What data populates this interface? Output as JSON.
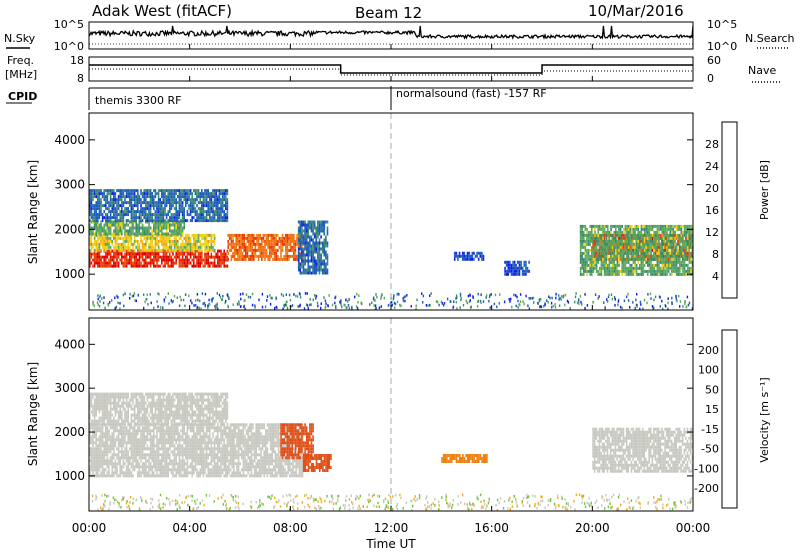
{
  "header": {
    "radar": "Adak West (fitACF)",
    "beam": "Beam 12",
    "date": "10/Mar/2016"
  },
  "strips": {
    "noise_left_label": "N.Sky",
    "noise_right_label": "N.Search",
    "noise_ticks_left": [
      "10^5",
      "10^0"
    ],
    "noise_ticks_right": [
      "10^5",
      "10^0"
    ],
    "freq_label_line1": "Freq.",
    "freq_label_line2": "[MHz]",
    "freq_ticks": [
      "18",
      "8"
    ],
    "nave_label": "Nave",
    "nave_ticks": [
      "60",
      "0"
    ],
    "cpid_label": "CPID",
    "cpid_segments": [
      {
        "text": "themis 3300 RF",
        "start_hour": 0,
        "end_hour": 12
      },
      {
        "text": "normalsound (fast) -157 RF",
        "start_hour": 12,
        "end_hour": 24
      }
    ]
  },
  "axes": {
    "xlabel": "Time UT",
    "ylabel": "Slant Range [km]",
    "x_ticks": [
      "00:00",
      "04:00",
      "08:00",
      "12:00",
      "16:00",
      "20:00",
      "00:00"
    ],
    "y_ticks": [
      "1000",
      "2000",
      "3000",
      "4000"
    ]
  },
  "power_scale": {
    "title": "Power [dB]",
    "ticks": [
      "4",
      "8",
      "12",
      "16",
      "20",
      "24",
      "28"
    ],
    "colors": [
      "#1020e8",
      "#1d5fb6",
      "#3d8a6e",
      "#5aa85a",
      "#f0d010",
      "#f0a010",
      "#f07010",
      "#e63a00",
      "#e00000"
    ]
  },
  "velocity_scale": {
    "title": "Velocity [m s⁻¹]",
    "ticks": [
      "200",
      "100",
      "50",
      "15",
      "-15",
      "-50",
      "-100",
      "-200"
    ],
    "colors": [
      "#1a28c8",
      "#2a55a6",
      "#3a8860",
      "#6fc63a",
      "#c8c8c0",
      "#f0b020",
      "#f08010",
      "#e05018",
      "#e00000"
    ]
  },
  "chart_data": [
    {
      "type": "heatmap",
      "panel": "power",
      "x_unit": "hours UT",
      "y_unit": "km",
      "xlim": [
        0,
        24
      ],
      "ylim": [
        200,
        4600
      ],
      "zlim": [
        0,
        32
      ],
      "regions": [
        {
          "t0": 0.0,
          "t1": 5.5,
          "r0": 1150,
          "r1": 1550,
          "db": 28
        },
        {
          "t0": 5.5,
          "t1": 8.5,
          "r0": 1300,
          "r1": 1900,
          "db": 24
        },
        {
          "t0": 0.0,
          "t1": 5.0,
          "r0": 1550,
          "r1": 1900,
          "db": 16
        },
        {
          "t0": 0.0,
          "t1": 3.8,
          "r0": 1900,
          "r1": 2200,
          "db": 12
        },
        {
          "t0": 0.0,
          "t1": 5.5,
          "r0": 2200,
          "r1": 2900,
          "db": 6
        },
        {
          "t0": 8.3,
          "t1": 9.5,
          "r0": 1000,
          "r1": 2200,
          "db": 6
        },
        {
          "t0": 14.5,
          "t1": 15.7,
          "r0": 1300,
          "r1": 1500,
          "db": 4
        },
        {
          "t0": 16.5,
          "t1": 17.5,
          "r0": 1000,
          "r1": 1300,
          "db": 4
        },
        {
          "t0": 20.0,
          "t1": 24.0,
          "r0": 1300,
          "r1": 1900,
          "db": 26
        },
        {
          "t0": 19.5,
          "t1": 24.0,
          "r0": 1000,
          "r1": 2100,
          "db": 12
        }
      ]
    },
    {
      "type": "heatmap",
      "panel": "velocity",
      "x_unit": "hours UT",
      "y_unit": "km",
      "xlim": [
        0,
        24
      ],
      "ylim": [
        200,
        4600
      ],
      "zlim": [
        -200,
        200
      ],
      "regions": [
        {
          "t0": 0.0,
          "t1": 8.5,
          "r0": 1000,
          "r1": 2200,
          "v": 0
        },
        {
          "t0": 0.0,
          "t1": 5.5,
          "r0": 2200,
          "r1": 2900,
          "v": 0
        },
        {
          "t0": 7.6,
          "t1": 8.9,
          "r0": 1400,
          "r1": 2200,
          "v": -100
        },
        {
          "t0": 8.5,
          "t1": 9.6,
          "r0": 1100,
          "r1": 1500,
          "v": -100
        },
        {
          "t0": 14.0,
          "t1": 15.8,
          "r0": 1300,
          "r1": 1500,
          "v": -50
        },
        {
          "t0": 20.0,
          "t1": 24.0,
          "r0": 1100,
          "r1": 2100,
          "v": 0
        }
      ]
    }
  ]
}
